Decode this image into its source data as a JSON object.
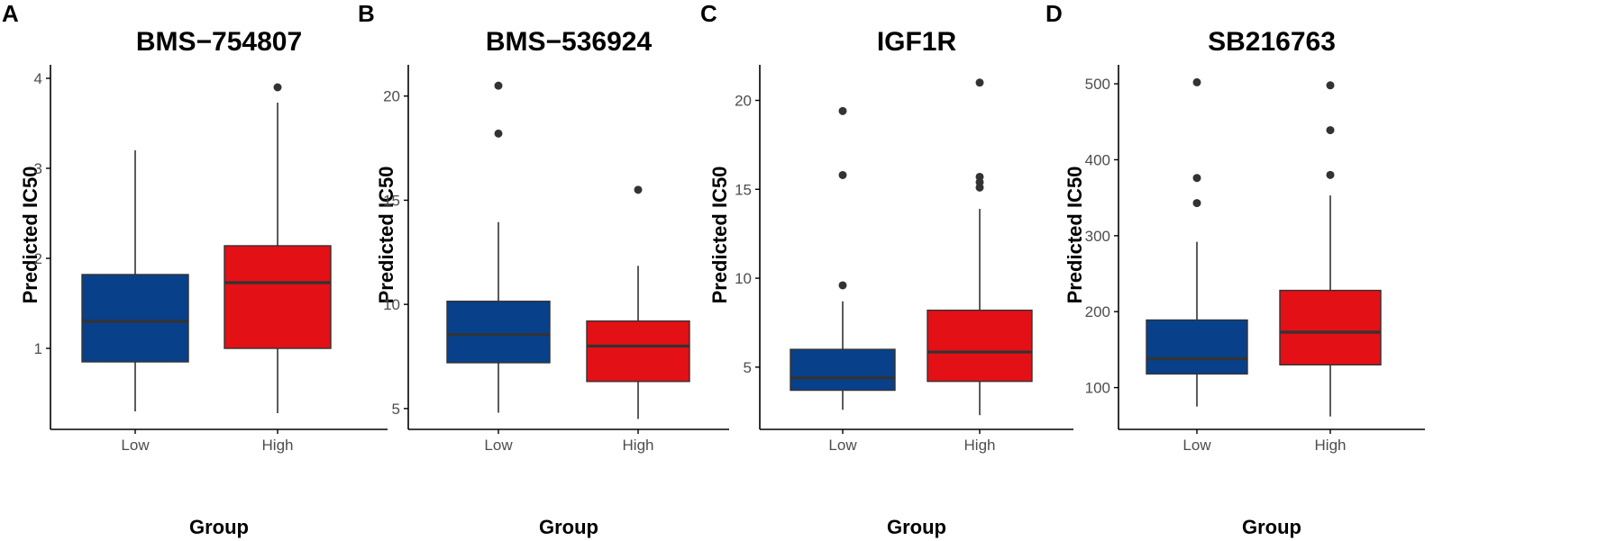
{
  "chart_data": [
    {
      "type": "box",
      "panel": "A",
      "title": "BMS−754807",
      "xlabel": "Group",
      "ylabel": "Predicted IC50",
      "categories": [
        "Low",
        "High"
      ],
      "ylim": [
        0.1,
        4.15
      ],
      "yticks": [
        1,
        2,
        3,
        4
      ],
      "boxes": [
        {
          "group": "Low",
          "whisker_low": 0.3,
          "q1": 0.85,
          "median": 1.3,
          "q3": 1.82,
          "whisker_high": 3.2,
          "outliers": [],
          "color": "#08418a"
        },
        {
          "group": "High",
          "whisker_low": 0.28,
          "q1": 1.0,
          "median": 1.73,
          "q3": 2.14,
          "whisker_high": 3.73,
          "outliers": [
            3.9
          ],
          "color": "#e31016"
        }
      ]
    },
    {
      "type": "box",
      "panel": "B",
      "title": "BMS−536924",
      "xlabel": "Group",
      "ylabel": "Predicted IC50",
      "categories": [
        "Low",
        "High"
      ],
      "ylim": [
        4.0,
        21.5
      ],
      "yticks": [
        5,
        10,
        15,
        20
      ],
      "boxes": [
        {
          "group": "Low",
          "whisker_low": 4.8,
          "q1": 7.2,
          "median": 8.55,
          "q3": 10.15,
          "whisker_high": 13.95,
          "outliers": [
            18.2,
            20.5
          ],
          "color": "#08418a"
        },
        {
          "group": "High",
          "whisker_low": 4.5,
          "q1": 6.3,
          "median": 8.0,
          "q3": 9.2,
          "whisker_high": 11.85,
          "outliers": [
            15.5
          ],
          "color": "#e31016"
        }
      ]
    },
    {
      "type": "box",
      "panel": "C",
      "title": "IGF1R",
      "xlabel": "Group",
      "ylabel": "Predicted IC50",
      "categories": [
        "Low",
        "High"
      ],
      "ylim": [
        1.5,
        22.0
      ],
      "yticks": [
        5,
        10,
        15,
        20
      ],
      "boxes": [
        {
          "group": "Low",
          "whisker_low": 2.6,
          "q1": 3.7,
          "median": 4.4,
          "q3": 6.0,
          "whisker_high": 8.7,
          "outliers": [
            9.6,
            15.8,
            19.4
          ],
          "color": "#08418a"
        },
        {
          "group": "High",
          "whisker_low": 2.3,
          "q1": 4.2,
          "median": 5.85,
          "q3": 8.2,
          "whisker_high": 13.9,
          "outliers": [
            15.1,
            15.4,
            15.7,
            21.0
          ],
          "color": "#e31016"
        }
      ]
    },
    {
      "type": "box",
      "panel": "D",
      "title": "SB216763",
      "xlabel": "Group",
      "ylabel": "Predicted IC50",
      "categories": [
        "Low",
        "High"
      ],
      "ylim": [
        45,
        525
      ],
      "yticks": [
        100,
        200,
        300,
        400,
        500
      ],
      "boxes": [
        {
          "group": "Low",
          "whisker_low": 75,
          "q1": 118,
          "median": 138,
          "q3": 189,
          "whisker_high": 292,
          "outliers": [
            343,
            376,
            502
          ],
          "color": "#08418a"
        },
        {
          "group": "High",
          "whisker_low": 62,
          "q1": 130,
          "median": 173,
          "q3": 228,
          "whisker_high": 353,
          "outliers": [
            380,
            439,
            498
          ],
          "color": "#e31016"
        }
      ]
    }
  ]
}
